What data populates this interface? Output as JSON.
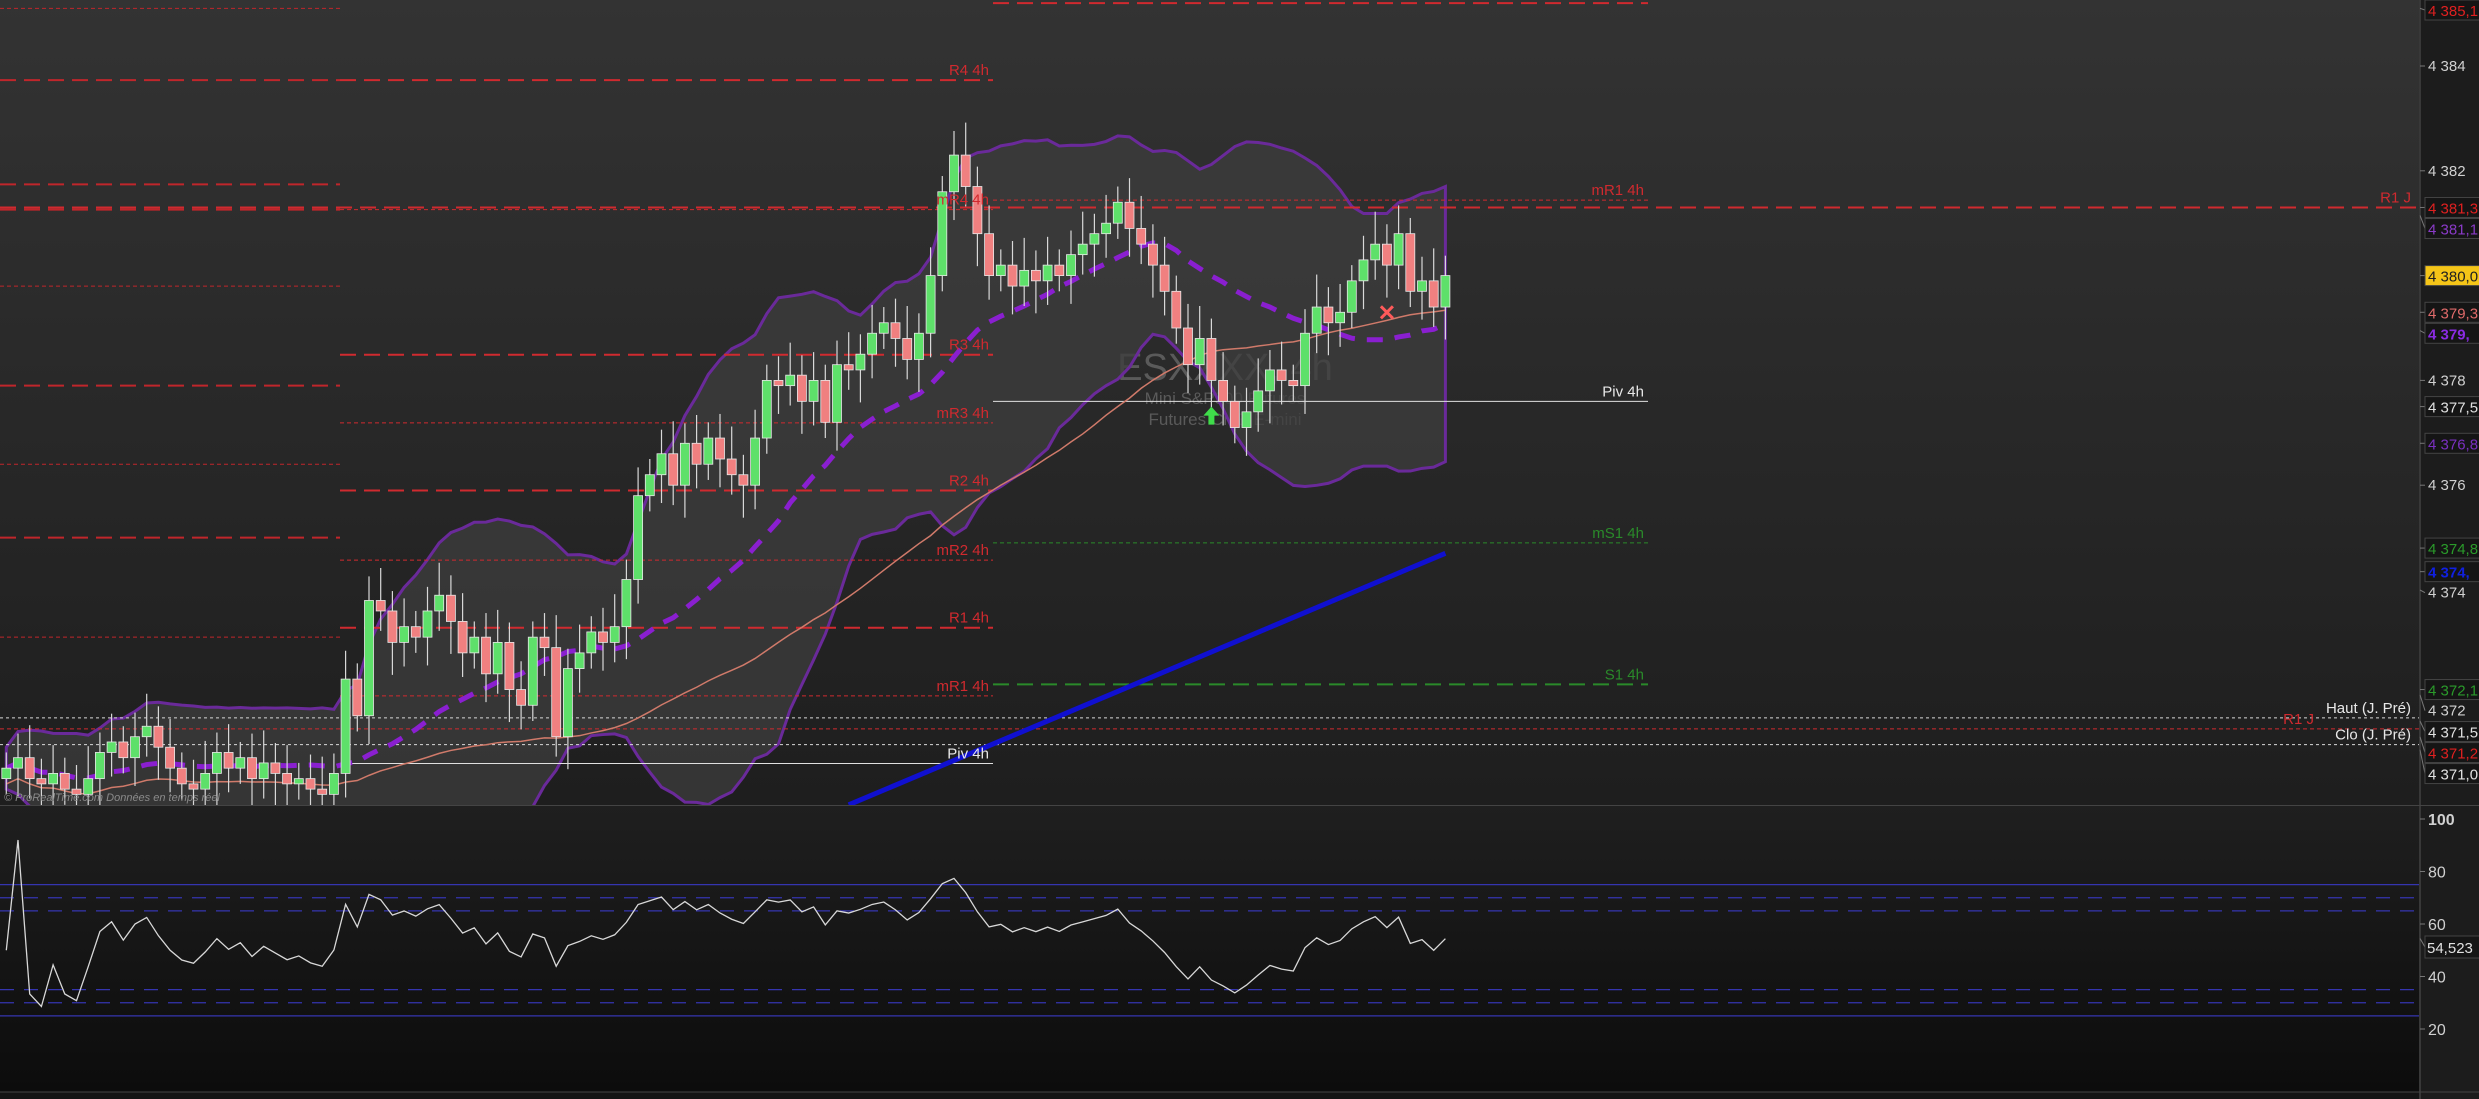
{
  "chart_data": {
    "type": "candlestick",
    "instrument_watermark": [
      "ESXXXX, 4h",
      "Mini S&P500 Futures",
      "Futures CME E-mini"
    ],
    "footer_text": "© ProRealTime.com Données en temps réel",
    "price_axis": {
      "ticks": [
        "4 384",
        "4 382",
        "4 378",
        "4 376",
        "4 374",
        "4 372"
      ],
      "tick_values": [
        4384,
        4382,
        4378,
        4376,
        4374,
        4372
      ],
      "range": [
        4369.9,
        4385.3
      ]
    },
    "closes": [
      4370.6,
      4370.8,
      4370.4,
      4370.3,
      4370.5,
      4370.2,
      4370.1,
      4370.4,
      4370.9,
      4371.1,
      4370.8,
      4371.2,
      4371.4,
      4371.0,
      4370.6,
      4370.3,
      4370.2,
      4370.5,
      4370.9,
      4370.6,
      4370.8,
      4370.4,
      4370.7,
      4370.5,
      4370.3,
      4370.4,
      4370.2,
      4370.1,
      4370.5,
      4372.3,
      4371.6,
      4373.8,
      4373.6,
      4373.0,
      4373.3,
      4373.1,
      4373.6,
      4373.9,
      4373.4,
      4372.8,
      4373.1,
      4372.4,
      4373.0,
      4372.1,
      4371.8,
      4373.1,
      4372.9,
      4371.2,
      4372.5,
      4372.8,
      4373.2,
      4373.0,
      4373.3,
      4374.2,
      4375.8,
      4376.2,
      4376.6,
      4376.0,
      4376.8,
      4376.4,
      4376.9,
      4376.5,
      4376.2,
      4376.0,
      4376.9,
      4378.0,
      4377.9,
      4378.1,
      4377.6,
      4378.0,
      4377.2,
      4378.3,
      4378.2,
      4378.5,
      4378.9,
      4379.1,
      4378.8,
      4378.4,
      4378.9,
      4380.0,
      4381.6,
      4382.3,
      4381.7,
      4380.8,
      4380.0,
      4380.2,
      4379.8,
      4380.1,
      4379.9,
      4380.2,
      4380.0,
      4380.4,
      4380.6,
      4380.8,
      4381.0,
      4381.4,
      4380.9,
      4380.6,
      4380.2,
      4379.7,
      4379.0,
      4378.3,
      4378.8,
      4378.0,
      4377.6,
      4377.1,
      4377.4,
      4377.8,
      4378.2,
      4378.0,
      4377.9,
      4378.9,
      4379.4,
      4379.1,
      4379.3,
      4379.9,
      4380.3,
      4380.6,
      4380.2,
      4380.8,
      4379.7,
      4379.9,
      4379.4,
      4380.0
    ],
    "blue_ma": {
      "from": [
        72,
        4369.9
      ],
      "to": [
        123,
        4374.7
      ]
    },
    "levels": [
      {
        "seg": "left",
        "price": 4385.1,
        "style": "thin",
        "color": "#c0262b",
        "label": ""
      },
      {
        "seg": "left",
        "price": 4383.73,
        "style": "thick",
        "color": "#c0262b",
        "label": ""
      },
      {
        "seg": "left",
        "price": 4381.74,
        "style": "thick",
        "color": "#c0262b",
        "label": ""
      },
      {
        "seg": "left",
        "price": 4381.26,
        "style": "thick",
        "color": "#c0262b",
        "label": ""
      },
      {
        "seg": "left",
        "price": 4379.8,
        "style": "thin",
        "color": "#c0262b",
        "label": ""
      },
      {
        "seg": "left",
        "price": 4377.9,
        "style": "thick",
        "color": "#c0262b",
        "label": ""
      },
      {
        "seg": "left",
        "price": 4376.4,
        "style": "thin",
        "color": "#c0262b",
        "label": ""
      },
      {
        "seg": "left",
        "price": 4375.0,
        "style": "thick",
        "color": "#c0262b",
        "label": ""
      },
      {
        "seg": "left",
        "price": 4373.1,
        "style": "thin",
        "color": "#c0262b",
        "label": ""
      },
      {
        "seg": "mid",
        "price": 4383.73,
        "style": "thick",
        "color": "#d02a2f",
        "label": "R4 4h"
      },
      {
        "seg": "mid",
        "price": 4381.26,
        "style": "thin",
        "color": "#d02a2f",
        "label": "mR4 4h"
      },
      {
        "seg": "mid",
        "price": 4378.49,
        "style": "thick",
        "color": "#d02a2f",
        "label": "R3 4h"
      },
      {
        "seg": "mid",
        "price": 4377.19,
        "style": "thin",
        "color": "#d02a2f",
        "label": "mR3 4h"
      },
      {
        "seg": "mid",
        "price": 4375.9,
        "style": "thick",
        "color": "#d02a2f",
        "label": "R2 4h"
      },
      {
        "seg": "mid",
        "price": 4374.57,
        "style": "thin",
        "color": "#d02a2f",
        "label": "mR2 4h"
      },
      {
        "seg": "mid",
        "price": 4373.28,
        "style": "thick",
        "color": "#d02a2f",
        "label": "R1 4h"
      },
      {
        "seg": "mid",
        "price": 4371.98,
        "style": "thin",
        "color": "#d02a2f",
        "label": "mR1 4h"
      },
      {
        "seg": "mid",
        "price": 4370.69,
        "style": "solid",
        "color": "#e0e0e0",
        "label": "Piv 4h"
      },
      {
        "seg": "right",
        "price": 4385.2,
        "style": "thick",
        "color": "#d02a2f",
        "label": ""
      },
      {
        "seg": "right",
        "price": 4381.44,
        "style": "thin",
        "color": "#d02a2f",
        "label": "mR1 4h"
      },
      {
        "seg": "right",
        "price": 4377.6,
        "style": "solid",
        "color": "#e0e0e0",
        "label": "Piv 4h"
      },
      {
        "seg": "right",
        "price": 4374.9,
        "style": "thin",
        "color": "#2a8a2a",
        "label": "mS1 4h"
      },
      {
        "seg": "right",
        "price": 4372.2,
        "style": "thick",
        "color": "#2a8a2a",
        "label": "S1 4h"
      },
      {
        "seg": "full",
        "price": 4381.3,
        "style": "thick",
        "color": "#d02a2f",
        "label": "R1 J"
      },
      {
        "seg": "full",
        "price": 4371.56,
        "style": "dot",
        "color": "#d8d8d8",
        "label": "Haut (J. Pré)"
      },
      {
        "seg": "full",
        "price": 4371.35,
        "style": "thin",
        "color": "#d02a2f",
        "label": "R1 J"
      },
      {
        "seg": "full",
        "price": 4371.05,
        "style": "dot",
        "color": "#d8d8d8",
        "label": "Clo (J. Pré)"
      }
    ],
    "axis_tags": [
      {
        "price": 4385.1,
        "text": "4 385,1",
        "color": "#e02020"
      },
      {
        "price": 4381.3,
        "text": "4 381,3",
        "color": "#e02020"
      },
      {
        "price": 4381.15,
        "text": "4 381,1",
        "color": "#8a3ac8"
      },
      {
        "price": 4380.0,
        "text": "4 380,0",
        "color": "#202020",
        "bg": "#f5c518"
      },
      {
        "price": 4379.3,
        "text": "4 379,3",
        "color": "#e06a6a"
      },
      {
        "price": 4378.95,
        "text": "4 379,",
        "color": "#8a2be2",
        "bold": true
      },
      {
        "price": 4377.5,
        "text": "4 377,5",
        "color": "#e0e0e0"
      },
      {
        "price": 4376.8,
        "text": "4 376,8",
        "color": "#7a30c0"
      },
      {
        "price": 4374.8,
        "text": "4 374,8",
        "color": "#2a9a2a"
      },
      {
        "price": 4374.35,
        "text": "4 374,",
        "color": "#1020e0",
        "bold": true
      },
      {
        "price": 4372.1,
        "text": "4 372,1",
        "color": "#2a9a2a"
      },
      {
        "price": 4371.5,
        "text": "4 371,5",
        "color": "#e0e0e0"
      },
      {
        "price": 4371.2,
        "text": "4 371,2",
        "color": "#e02020"
      },
      {
        "price": 4370.95,
        "text": "4 371,0",
        "color": "#e0e0e0"
      }
    ],
    "rsi": {
      "period": 14,
      "ticks": [
        "100",
        "80",
        "60",
        "40",
        "20"
      ],
      "tick_values": [
        100,
        80,
        60,
        40,
        20
      ],
      "range": [
        0,
        105
      ],
      "current_value": "54,523",
      "bands": [
        {
          "v": 75,
          "style": "solid"
        },
        {
          "v": 70,
          "style": "dash"
        },
        {
          "v": 65,
          "style": "dash"
        },
        {
          "v": 35,
          "style": "dash"
        },
        {
          "v": 30,
          "style": "dash"
        },
        {
          "v": 25,
          "style": "solid"
        }
      ]
    },
    "colors": {
      "up": "#5ee06a",
      "down": "#f08080",
      "band": "#6a2a9a",
      "mid_ma": "#8a1fd0",
      "slow_ma": "#d07a6a",
      "blue_ma": "#1010d0",
      "rsi_line": "#d8d8d8"
    }
  }
}
